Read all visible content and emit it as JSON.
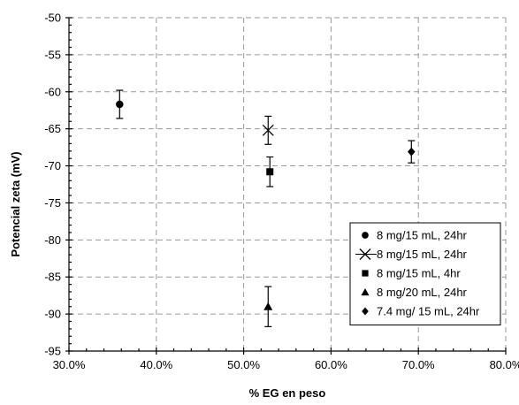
{
  "chart_data": {
    "type": "scatter",
    "xlabel": "% EG en peso",
    "ylabel": "Potencial zeta (mV)",
    "xlim": [
      0.3,
      0.8
    ],
    "ylim": [
      -95,
      -50
    ],
    "x_ticks": [
      0.3,
      0.4,
      0.5,
      0.6,
      0.7,
      0.8
    ],
    "x_tick_labels": [
      "30.0%",
      "40.0%",
      "50.0%",
      "60.0%",
      "70.0%",
      "80.0%"
    ],
    "y_ticks": [
      -95,
      -90,
      -85,
      -80,
      -75,
      -70,
      -65,
      -60,
      -55,
      -50
    ],
    "y_tick_labels": [
      "-95",
      "-90",
      "-85",
      "-80",
      "-75",
      "-70",
      "-65",
      "-60",
      "-55",
      "-50"
    ],
    "grid": true,
    "legend_position": "bottom-right",
    "series": [
      {
        "name": "8 mg/15 mL, 24hr",
        "marker": "circle",
        "points": [
          {
            "x": 0.358,
            "y": -61.7,
            "err": 1.9
          }
        ]
      },
      {
        "name": "8 mg/15 mL, 24hr",
        "marker": "x",
        "points": [
          {
            "x": 0.528,
            "y": -65.2,
            "err": 1.9
          }
        ]
      },
      {
        "name": "8 mg/15 mL, 4hr",
        "marker": "square",
        "points": [
          {
            "x": 0.53,
            "y": -70.8,
            "err": 2.0
          }
        ]
      },
      {
        "name": "8 mg/20 mL, 24hr",
        "marker": "triangle",
        "points": [
          {
            "x": 0.528,
            "y": -89.0,
            "err": 2.7
          }
        ]
      },
      {
        "name": "7.4 mg/ 15 mL, 24hr",
        "marker": "diamond",
        "points": [
          {
            "x": 0.692,
            "y": -68.1,
            "err": 1.5
          }
        ]
      }
    ]
  }
}
